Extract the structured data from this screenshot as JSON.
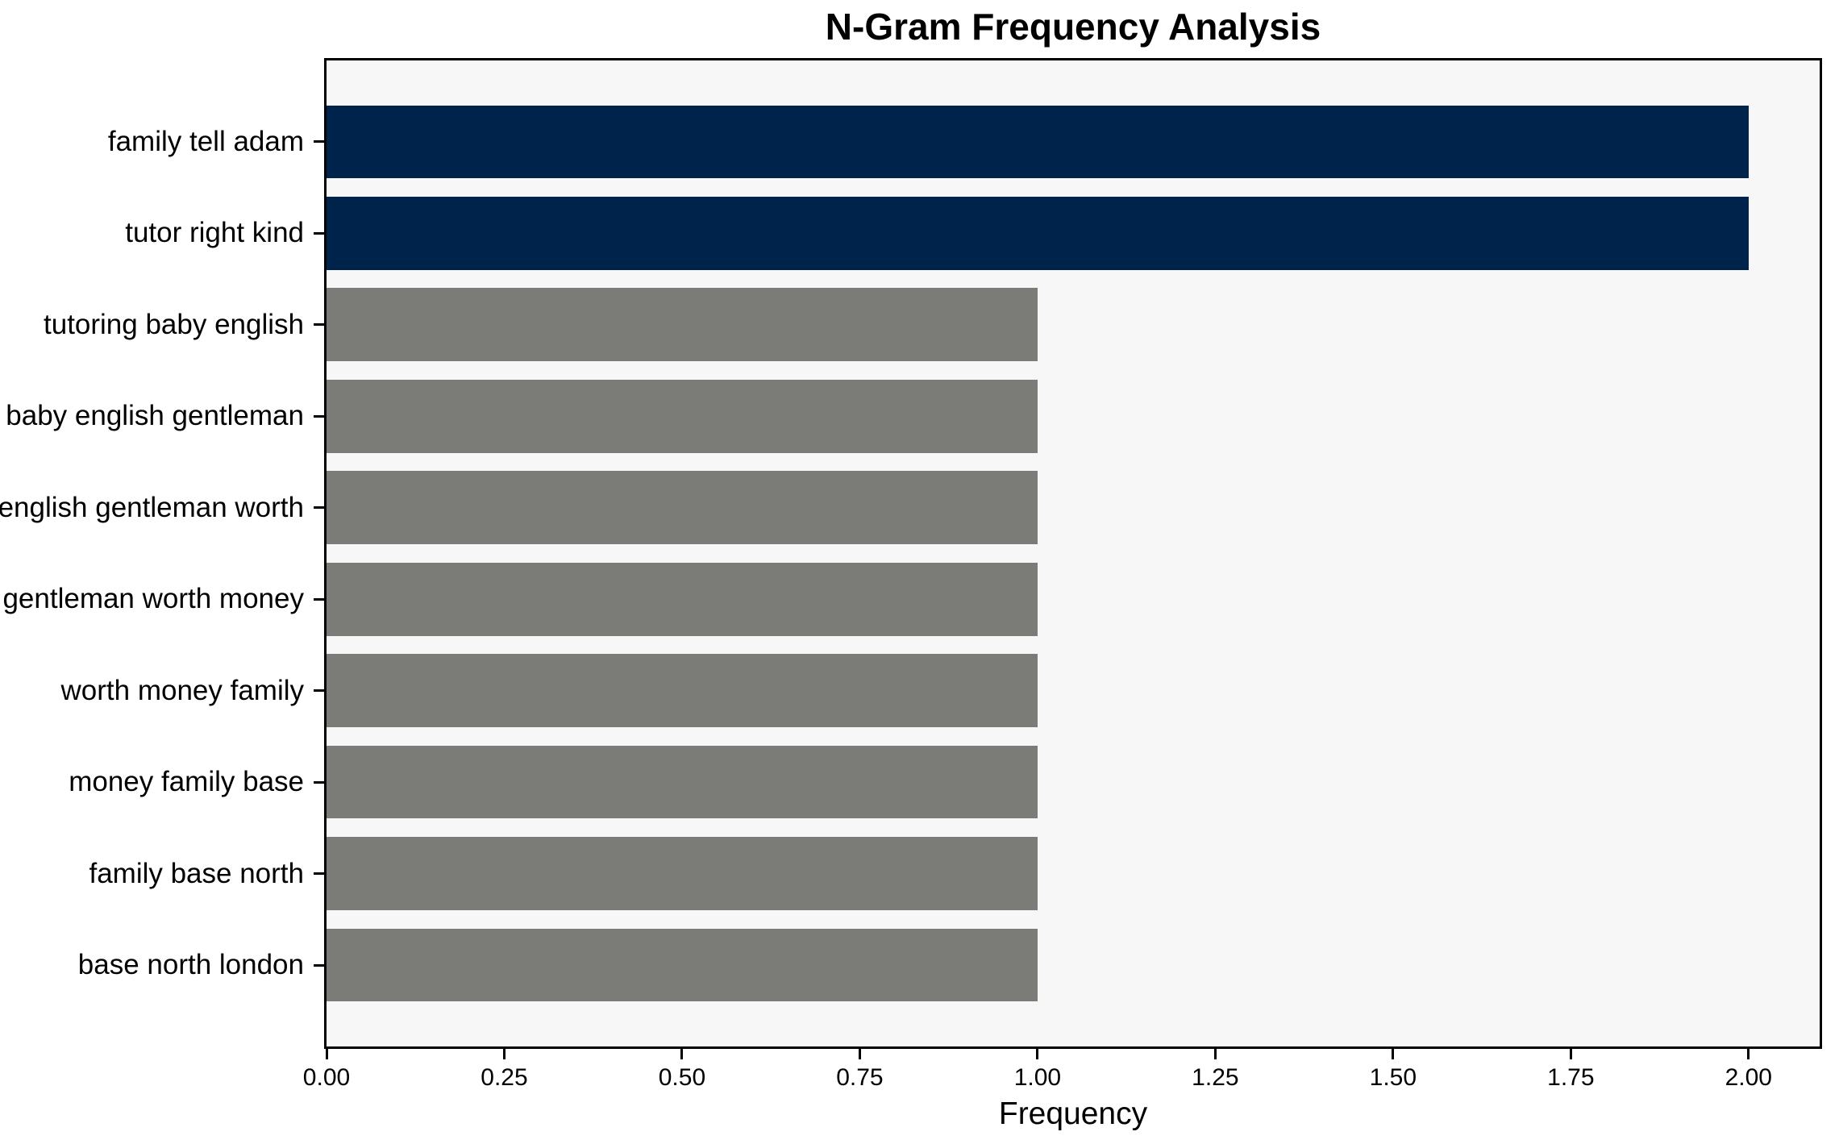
{
  "chart_data": {
    "type": "bar",
    "orientation": "horizontal",
    "title": "N-Gram Frequency Analysis",
    "xlabel": "Frequency",
    "ylabel": "",
    "categories": [
      "family tell adam",
      "tutor right kind",
      "tutoring baby english",
      "baby english gentleman",
      "english gentleman worth",
      "gentleman worth money",
      "worth money family",
      "money family base",
      "family base north",
      "base north london"
    ],
    "values": [
      2,
      2,
      1,
      1,
      1,
      1,
      1,
      1,
      1,
      1
    ],
    "bar_colors": [
      "#00234c",
      "#00234c",
      "#7b7b78",
      "#7b7b78",
      "#7b7b78",
      "#7b7b78",
      "#7b7b78",
      "#7b7b78",
      "#7b7b78",
      "#7b7b78"
    ],
    "xlim": [
      0,
      2.1
    ],
    "xticks": [
      0,
      0.25,
      0.5,
      0.75,
      1,
      1.25,
      1.5,
      1.75,
      2
    ],
    "xtick_labels": [
      "0.00",
      "0.25",
      "0.50",
      "0.75",
      "1.00",
      "1.25",
      "1.50",
      "1.75",
      "2.00"
    ],
    "grid": false,
    "legend": null,
    "colors": {
      "highlight_navy": "#00234c",
      "default_gray": "#7b7b78",
      "plot_background": "#f7f7f7",
      "figure_background": "#ffffff",
      "axis_line": "#000000",
      "text": "#000000"
    }
  }
}
